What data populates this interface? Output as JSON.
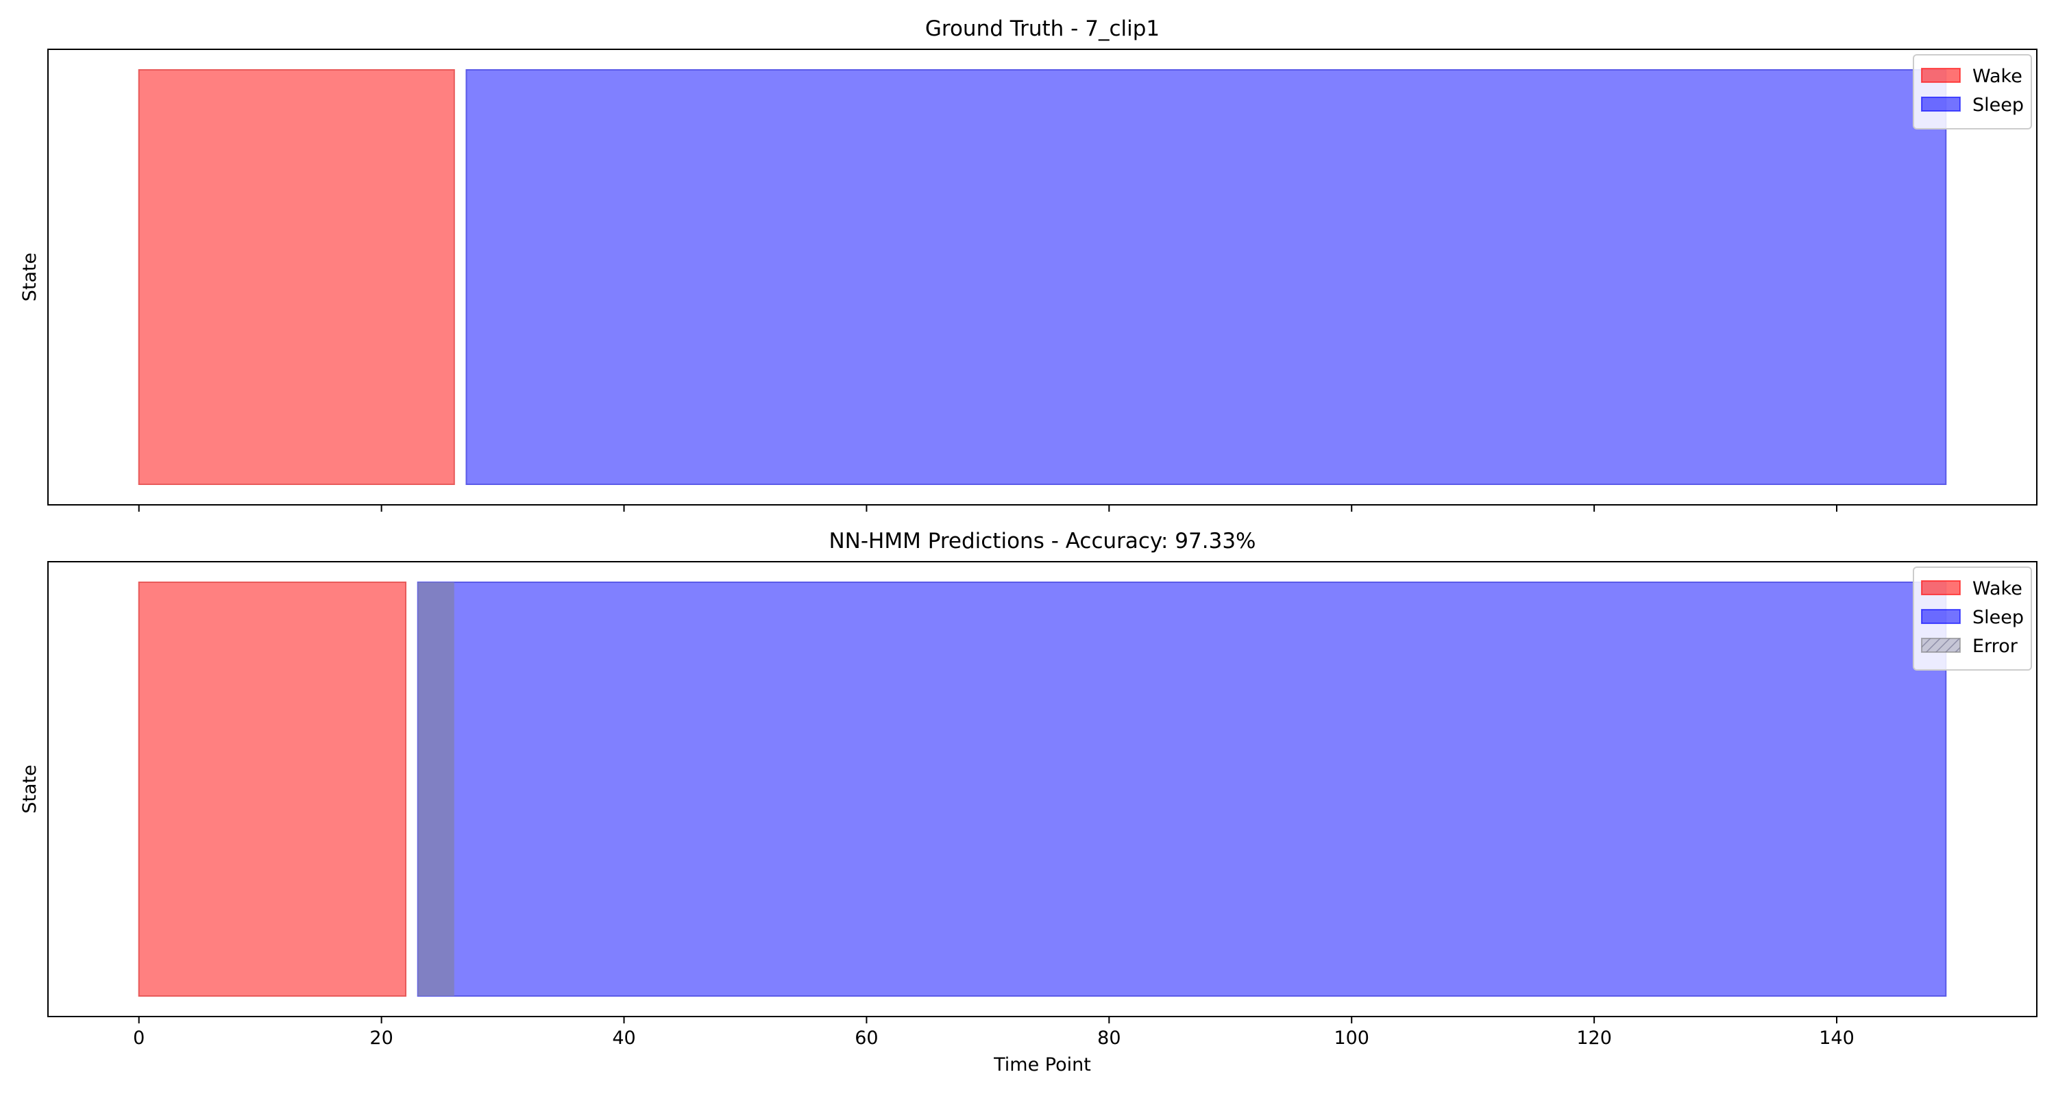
{
  "chart_data": [
    {
      "type": "bar",
      "title": "Ground Truth - 7_clip1",
      "xlabel": "",
      "ylabel": "State",
      "xlim": [
        -7.5,
        156.5
      ],
      "x_ticks": [
        0,
        20,
        40,
        60,
        80,
        100,
        120,
        140
      ],
      "x_ticklabels_visible": false,
      "grid": false,
      "legend_position": "top-right",
      "legend": [
        {
          "label": "Wake",
          "color": "#ff0000"
        },
        {
          "label": "Sleep",
          "color": "#0000ff"
        }
      ],
      "segments": [
        {
          "state": "Wake",
          "start": 0,
          "end": 26,
          "color": "#ff8080",
          "edge": "#e85a5a"
        },
        {
          "state": "Sleep",
          "start": 27,
          "end": 149,
          "color": "#8080ff",
          "edge": "#5a5ae8"
        }
      ],
      "errors": []
    },
    {
      "type": "bar",
      "title": "NN-HMM Predictions - Accuracy: 97.33%",
      "xlabel": "Time Point",
      "ylabel": "State",
      "xlim": [
        -7.5,
        156.5
      ],
      "x_ticks": [
        0,
        20,
        40,
        60,
        80,
        100,
        120,
        140
      ],
      "x_ticklabels_visible": true,
      "grid": false,
      "legend_position": "top-right",
      "legend": [
        {
          "label": "Wake",
          "color": "#ff0000"
        },
        {
          "label": "Sleep",
          "color": "#0000ff"
        },
        {
          "label": "Error",
          "color": "#808080",
          "hatched": true
        }
      ],
      "segments": [
        {
          "state": "Wake",
          "start": 0,
          "end": 22,
          "color": "#ff8080",
          "edge": "#e85a5a"
        },
        {
          "state": "Sleep",
          "start": 23,
          "end": 149,
          "color": "#8080ff",
          "edge": "#5a5ae8"
        }
      ],
      "errors": [
        {
          "start": 23,
          "end": 26,
          "color": "#8080b8"
        }
      ]
    }
  ]
}
